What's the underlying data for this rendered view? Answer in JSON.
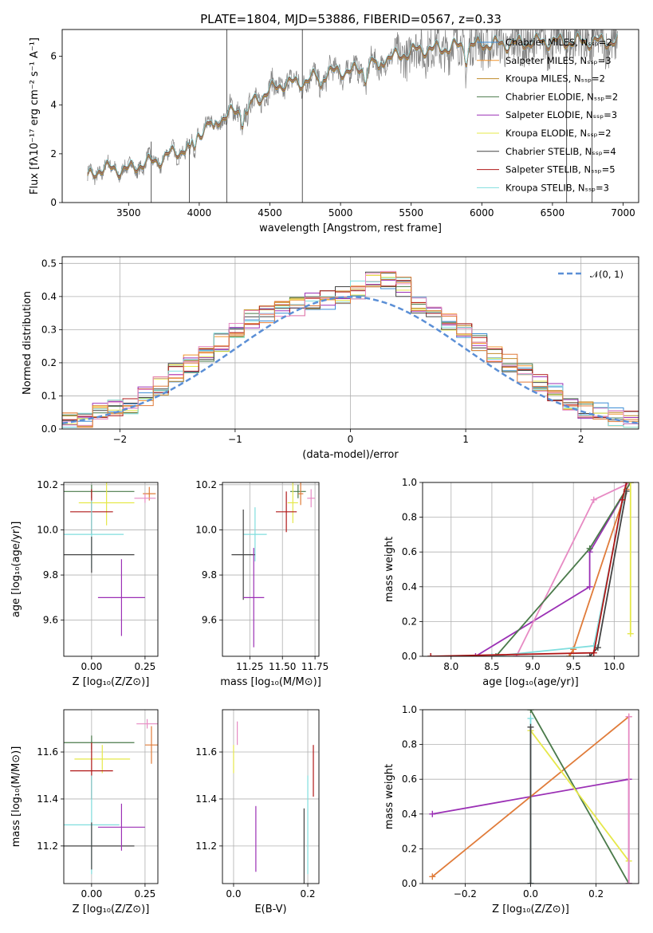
{
  "title": "PLATE=1804, MJD=53886, FIBERID=0567, z=0.33",
  "colors": {
    "chabrier_miles": "#3c8dd6",
    "salpeter_miles": "#f0922b",
    "kroupa_miles": "#c08b2c",
    "chabrier_elodie": "#4a7a4a",
    "salpeter_elodie": "#9b30b5",
    "kroupa_elodie": "#e6e84a",
    "chabrier_stelib": "#444444",
    "salpeter_stelib": "#b01818",
    "kroupa_stelib": "#80dede",
    "extra_orange": "#e07b39",
    "extra_pink": "#e78ac3",
    "data": "#808080",
    "gauss": "#5b8fd6"
  },
  "chart_data": [
    {
      "id": "spectrum",
      "type": "line",
      "title": "PLATE=1804, MJD=53886, FIBERID=0567, z=0.33",
      "xlabel": "wavelength [Angstrom, rest frame]",
      "ylabel": "Flux [fλ10⁻¹⁷ erg cm⁻² s⁻¹ A⁻¹]",
      "xlim": [
        3030,
        7110
      ],
      "ylim": [
        0,
        7.1
      ],
      "xticks": [
        "3500",
        "4000",
        "4500",
        "5000",
        "5500",
        "6000",
        "6500",
        "7000"
      ],
      "yticks": [
        "0",
        "2",
        "4",
        "6"
      ],
      "legend_position": "upper-right",
      "legend": [
        "Chabrier MILES, Nₛₛₚ=2",
        "Salpeter MILES, Nₛₛₚ=3",
        "Kroupa MILES, Nₛₛₚ=2",
        "Chabrier ELODIE, Nₛₛₚ=2",
        "Salpeter ELODIE, Nₛₛₚ=3",
        "Kroupa ELODIE, Nₛₛₚ=2",
        "Chabrier STELIB, Nₛₛₚ=4",
        "Salpeter STELIB, Nₛₛₚ=5",
        "Kroupa STELIB, Nₛₛₚ=3"
      ],
      "continuum": [
        [
          3210,
          1.0
        ],
        [
          3300,
          1.4
        ],
        [
          3500,
          1.35
        ],
        [
          3600,
          1.6
        ],
        [
          3700,
          1.7
        ],
        [
          3800,
          2.0
        ],
        [
          3900,
          2.2
        ],
        [
          4000,
          2.9
        ],
        [
          4100,
          3.3
        ],
        [
          4200,
          3.6
        ],
        [
          4300,
          3.8
        ],
        [
          4400,
          4.2
        ],
        [
          4500,
          4.6
        ],
        [
          4600,
          4.9
        ],
        [
          4700,
          4.9
        ],
        [
          4800,
          5.1
        ],
        [
          4900,
          5.3
        ],
        [
          5000,
          5.4
        ],
        [
          5100,
          5.4
        ],
        [
          5200,
          5.6
        ],
        [
          5300,
          5.9
        ],
        [
          5400,
          6.0
        ],
        [
          5500,
          6.2
        ],
        [
          5600,
          6.3
        ],
        [
          5700,
          6.3
        ],
        [
          5800,
          6.4
        ],
        [
          5900,
          6.4
        ],
        [
          6000,
          6.5
        ],
        [
          6200,
          6.5
        ],
        [
          6400,
          6.6
        ],
        [
          6600,
          6.6
        ],
        [
          6800,
          6.6
        ],
        [
          6960,
          6.6
        ]
      ]
    },
    {
      "id": "residuals",
      "type": "line",
      "xlabel": "(data-model)/error",
      "ylabel": "Normed distribution",
      "xlim": [
        -2.5,
        2.5
      ],
      "ylim": [
        0,
        0.52
      ],
      "xticks": [
        "−2",
        "−1",
        "0",
        "1",
        "2"
      ],
      "yticks": [
        "0.0",
        "0.1",
        "0.2",
        "0.3",
        "0.4",
        "0.5"
      ],
      "legend": [
        "𝒩(0, 1)"
      ],
      "legend_position": "upper-right",
      "hist": [
        0.02,
        0.03,
        0.05,
        0.06,
        0.07,
        0.1,
        0.13,
        0.17,
        0.2,
        0.22,
        0.26,
        0.3,
        0.33,
        0.35,
        0.37,
        0.37,
        0.39,
        0.39,
        0.4,
        0.42,
        0.45,
        0.45,
        0.43,
        0.38,
        0.35,
        0.32,
        0.29,
        0.26,
        0.23,
        0.2,
        0.17,
        0.14,
        0.11,
        0.08,
        0.06,
        0.05,
        0.04,
        0.03
      ]
    },
    {
      "id": "age_vs_Z",
      "type": "scatter",
      "xlabel": "Z [log₁₀(Z/Z⊙)]",
      "ylabel": "age  [log₁₀(age/yr)]",
      "xlim": [
        -0.13,
        0.31
      ],
      "ylim": [
        9.44,
        10.21
      ],
      "xticks": [
        "0.00",
        "0.25"
      ],
      "yticks": [
        "9.6",
        "9.8",
        "10.0",
        "10.2"
      ],
      "points": [
        {
          "x": 0.0,
          "y": 10.17,
          "xe": 0.2,
          "ye": 0.03,
          "c": "#4a7a4a"
        },
        {
          "x": 0.07,
          "y": 10.12,
          "xe": 0.13,
          "ye": 0.1,
          "c": "#e6e84a"
        },
        {
          "x": 0.0,
          "y": 10.08,
          "xe": 0.1,
          "ye": 0.1,
          "c": "#b01818"
        },
        {
          "x": 0.0,
          "y": 9.98,
          "xe": 0.15,
          "ye": 0.15,
          "c": "#80dede"
        },
        {
          "x": 0.0,
          "y": 9.89,
          "xe": 0.2,
          "ye": 0.08,
          "c": "#444444"
        },
        {
          "x": 0.14,
          "y": 9.7,
          "xe": 0.11,
          "ye": 0.17,
          "c": "#9b30b5"
        },
        {
          "x": 0.27,
          "y": 10.16,
          "xe": 0.03,
          "ye": 0.03,
          "c": "#e07b39"
        },
        {
          "x": 0.25,
          "y": 10.14,
          "xe": 0.05,
          "ye": 0.02,
          "c": "#e78ac3"
        }
      ]
    },
    {
      "id": "age_vs_mass",
      "type": "scatter",
      "xlabel": "mass [log₁₀(M/M⊙)]",
      "ylabel": "",
      "xlim": [
        11.04,
        11.78
      ],
      "ylim": [
        9.44,
        10.21
      ],
      "xticks": [
        "11.25",
        "11.50",
        "11.75"
      ],
      "yticks": [
        "9.6",
        "9.8",
        "10.0",
        "10.2"
      ],
      "points": [
        {
          "x": 11.62,
          "y": 10.17,
          "xe": 0.06,
          "ye": 0.03,
          "c": "#4a7a4a"
        },
        {
          "x": 11.58,
          "y": 10.12,
          "xe": 0.04,
          "ye": 0.09,
          "c": "#e6e84a"
        },
        {
          "x": 11.53,
          "y": 10.08,
          "xe": 0.08,
          "ye": 0.09,
          "c": "#b01818"
        },
        {
          "x": 11.29,
          "y": 9.98,
          "xe": 0.09,
          "ye": 0.12,
          "c": "#80dede"
        },
        {
          "x": 11.2,
          "y": 9.89,
          "xe": 0.09,
          "ye": 0.2,
          "c": "#444444"
        },
        {
          "x": 11.28,
          "y": 9.7,
          "xe": 0.08,
          "ye": 0.22,
          "c": "#9b30b5"
        },
        {
          "x": 11.64,
          "y": 10.16,
          "xe": 0.02,
          "ye": 0.05,
          "c": "#e07b39"
        },
        {
          "x": 11.72,
          "y": 10.14,
          "xe": 0.03,
          "ye": 0.04,
          "c": "#e78ac3"
        }
      ]
    },
    {
      "id": "weight_vs_age",
      "type": "line",
      "xlabel": "age  [log₁₀(age/yr)]",
      "ylabel": "mass weight",
      "xlim": [
        7.65,
        10.3
      ],
      "ylim": [
        0,
        1.0
      ],
      "xticks": [
        "8.0",
        "8.5",
        "9.0",
        "9.5",
        "10.0"
      ],
      "yticks": [
        "0.0",
        "0.2",
        "0.4",
        "0.6",
        "0.8",
        "1.0"
      ],
      "lines": [
        {
          "c": "#9b30b5",
          "pts": [
            [
              8.3,
              0
            ],
            [
              9.7,
              0.4
            ],
            [
              9.7,
              0.6
            ],
            [
              10.2,
              1.0
            ]
          ]
        },
        {
          "c": "#e78ac3",
          "pts": [
            [
              8.8,
              0
            ],
            [
              9.75,
              0.9
            ],
            [
              10.2,
              1.0
            ]
          ]
        },
        {
          "c": "#4a7a4a",
          "pts": [
            [
              8.55,
              0
            ],
            [
              9.7,
              0.62
            ],
            [
              10.2,
              1.0
            ]
          ]
        },
        {
          "c": "#e07b39",
          "pts": [
            [
              9.45,
              0
            ],
            [
              9.5,
              0.04
            ],
            [
              10.15,
              0.96
            ]
          ]
        },
        {
          "c": "#80dede",
          "pts": [
            [
              8.5,
              0
            ],
            [
              9.75,
              0.06
            ],
            [
              10.15,
              1.0
            ]
          ]
        },
        {
          "c": "#444444",
          "pts": [
            [
              9.7,
              0
            ],
            [
              9.8,
              0.05
            ],
            [
              10.15,
              0.95
            ]
          ]
        },
        {
          "c": "#b01818",
          "pts": [
            [
              7.75,
              0
            ],
            [
              9.75,
              0.02
            ],
            [
              10.1,
              0.9
            ],
            [
              10.15,
              1.0
            ]
          ]
        },
        {
          "c": "#e6e84a",
          "pts": [
            [
              10.2,
              0.13
            ],
            [
              10.2,
              1.0
            ]
          ]
        }
      ]
    },
    {
      "id": "mass_vs_Z",
      "type": "scatter",
      "xlabel": "Z [log₁₀(Z/Z⊙)]",
      "ylabel": "mass [log₁₀(M/M⊙)]",
      "xlim": [
        -0.13,
        0.31
      ],
      "ylim": [
        11.04,
        11.78
      ],
      "xticks": [
        "0.00",
        "0.25"
      ],
      "yticks": [
        "11.2",
        "11.4",
        "11.6"
      ],
      "points": [
        {
          "x": 0.0,
          "y": 11.64,
          "xe": 0.2,
          "ye": 0.03,
          "c": "#4a7a4a"
        },
        {
          "x": 0.05,
          "y": 11.57,
          "xe": 0.13,
          "ye": 0.06,
          "c": "#e6e84a"
        },
        {
          "x": 0.0,
          "y": 11.52,
          "xe": 0.1,
          "ye": 0.12,
          "c": "#b01818"
        },
        {
          "x": 0.0,
          "y": 11.29,
          "xe": 0.13,
          "ye": 0.21,
          "c": "#80dede"
        },
        {
          "x": 0.0,
          "y": 11.2,
          "xe": 0.2,
          "ye": 0.1,
          "c": "#444444"
        },
        {
          "x": 0.14,
          "y": 11.28,
          "xe": 0.11,
          "ye": 0.1,
          "c": "#9b30b5"
        },
        {
          "x": 0.28,
          "y": 11.63,
          "xe": 0.03,
          "ye": 0.08,
          "c": "#e07b39"
        },
        {
          "x": 0.26,
          "y": 11.72,
          "xe": 0.05,
          "ye": 0.02,
          "c": "#e78ac3"
        }
      ]
    },
    {
      "id": "mass_vs_ebv",
      "type": "scatter",
      "xlabel": "E(B-V)",
      "ylabel": "",
      "xlim": [
        -0.03,
        0.23
      ],
      "ylim": [
        11.04,
        11.78
      ],
      "xticks": [
        "0.0",
        "0.2"
      ],
      "yticks": [
        "11.2",
        "11.4",
        "11.6"
      ],
      "points": [
        {
          "x": 0.0,
          "y": 11.57,
          "xe": 0.0,
          "ye": 0.06,
          "c": "#e6e84a"
        },
        {
          "x": 0.01,
          "y": 11.68,
          "xe": 0.0,
          "ye": 0.05,
          "c": "#e78ac3"
        },
        {
          "x": 0.06,
          "y": 11.23,
          "xe": 0.0,
          "ye": 0.14,
          "c": "#9b30b5"
        },
        {
          "x": 0.19,
          "y": 11.2,
          "xe": 0.0,
          "ye": 0.16,
          "c": "#444444"
        },
        {
          "x": 0.2,
          "y": 11.29,
          "xe": 0.0,
          "ye": 0.21,
          "c": "#80dede"
        },
        {
          "x": 0.215,
          "y": 11.52,
          "xe": 0.0,
          "ye": 0.11,
          "c": "#b01818"
        }
      ]
    },
    {
      "id": "weight_vs_Z",
      "type": "line",
      "xlabel": "Z [log₁₀(Z/Z⊙)]",
      "ylabel": "mass weight",
      "xlim": [
        -0.33,
        0.33
      ],
      "ylim": [
        0,
        1.0
      ],
      "xticks": [
        "−0.2",
        "0.0",
        "0.2"
      ],
      "yticks": [
        "0.0",
        "0.2",
        "0.4",
        "0.6",
        "0.8",
        "1.0"
      ],
      "lines": [
        {
          "c": "#9b30b5",
          "pts": [
            [
              -0.3,
              0.4
            ],
            [
              0.3,
              0.6
            ],
            [
              0.3,
              0
            ]
          ]
        },
        {
          "c": "#e07b39",
          "pts": [
            [
              -0.3,
              0.04
            ],
            [
              0.3,
              0.96
            ]
          ]
        },
        {
          "c": "#4a7a4a",
          "pts": [
            [
              0,
              1.0
            ],
            [
              0.3,
              0
            ]
          ]
        },
        {
          "c": "#e6e84a",
          "pts": [
            [
              0,
              0.88
            ],
            [
              0.3,
              0.13
            ]
          ]
        },
        {
          "c": "#e78ac3",
          "pts": [
            [
              0.3,
              0
            ],
            [
              0.3,
              0.96
            ]
          ]
        },
        {
          "c": "#80dede",
          "pts": [
            [
              0,
              0
            ],
            [
              0,
              0.95
            ]
          ]
        },
        {
          "c": "#444444",
          "pts": [
            [
              0,
              0
            ],
            [
              0,
              0.9
            ]
          ]
        }
      ]
    }
  ]
}
